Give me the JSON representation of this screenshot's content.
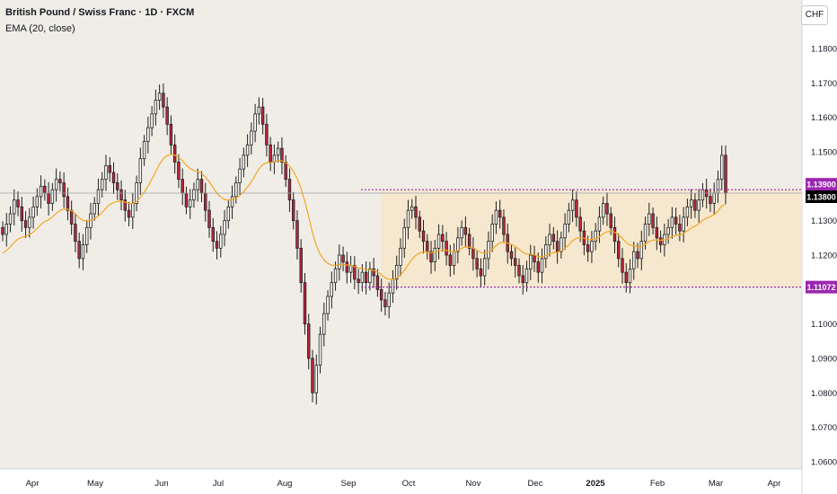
{
  "header": {
    "title": "British Pound / Swiss Franc · 1D · FXCM",
    "indicator": "EMA (20, close)",
    "currency": "CHF"
  },
  "colors": {
    "up": "#ffffff",
    "down": "#c0263e",
    "wick": "#1e1e1e",
    "ema": "#f5a623",
    "range_fill": "#f6e8cf",
    "level_line": "#9c27b0",
    "last_price_bg": "#000000",
    "background": "#f0ede6"
  },
  "chart_data": {
    "type": "candlestick",
    "symbol": "GBPCHF",
    "timeframe": "1D",
    "price_axis": {
      "min": 1.06,
      "max": 1.18,
      "ticks": [
        "1.18000",
        "1.17000",
        "1.16000",
        "1.15000",
        "1.14000",
        "1.13000",
        "1.12000",
        "1.11000",
        "1.10000",
        "1.09000",
        "1.08000",
        "1.07000",
        "1.06000"
      ]
    },
    "time_axis": [
      "Apr",
      "May",
      "Jun",
      "Jul",
      "Aug",
      "Sep",
      "Oct",
      "Nov",
      "Dec",
      "2025",
      "Feb",
      "Mar",
      "Apr"
    ],
    "range_box": {
      "top": 1.139,
      "bottom": 1.1107,
      "start": "Sep",
      "end": "Mar"
    },
    "levels": [
      {
        "price": 1.139,
        "label": "1.13900"
      },
      {
        "price": 1.1107,
        "label": "1.11072"
      }
    ],
    "last_price": {
      "price": 1.138,
      "label": "1.13800"
    },
    "ema_period": 20,
    "closes": [
      1.126,
      1.129,
      1.132,
      1.136,
      1.134,
      1.13,
      1.128,
      1.131,
      1.134,
      1.137,
      1.14,
      1.138,
      1.135,
      1.139,
      1.142,
      1.141,
      1.137,
      1.133,
      1.129,
      1.124,
      1.119,
      1.123,
      1.128,
      1.132,
      1.135,
      1.139,
      1.142,
      1.146,
      1.144,
      1.141,
      1.139,
      1.136,
      1.133,
      1.131,
      1.135,
      1.141,
      1.148,
      1.153,
      1.157,
      1.161,
      1.165,
      1.167,
      1.163,
      1.158,
      1.152,
      1.147,
      1.142,
      1.138,
      1.134,
      1.136,
      1.139,
      1.142,
      1.138,
      1.133,
      1.128,
      1.124,
      1.122,
      1.126,
      1.13,
      1.134,
      1.137,
      1.141,
      1.145,
      1.149,
      1.152,
      1.156,
      1.161,
      1.163,
      1.158,
      1.152,
      1.147,
      1.149,
      1.151,
      1.147,
      1.142,
      1.136,
      1.13,
      1.122,
      1.112,
      1.1,
      1.09,
      1.08,
      1.088,
      1.097,
      1.103,
      1.108,
      1.112,
      1.116,
      1.12,
      1.118,
      1.115,
      1.117,
      1.113,
      1.112,
      1.115,
      1.112,
      1.116,
      1.114,
      1.11,
      1.107,
      1.105,
      1.109,
      1.113,
      1.117,
      1.122,
      1.128,
      1.133,
      1.134,
      1.131,
      1.127,
      1.124,
      1.121,
      1.118,
      1.122,
      1.126,
      1.124,
      1.12,
      1.117,
      1.121,
      1.125,
      1.128,
      1.126,
      1.122,
      1.119,
      1.116,
      1.114,
      1.119,
      1.124,
      1.129,
      1.133,
      1.131,
      1.126,
      1.121,
      1.119,
      1.117,
      1.114,
      1.112,
      1.116,
      1.12,
      1.118,
      1.115,
      1.119,
      1.123,
      1.126,
      1.124,
      1.121,
      1.125,
      1.129,
      1.133,
      1.136,
      1.131,
      1.127,
      1.123,
      1.121,
      1.124,
      1.127,
      1.131,
      1.135,
      1.132,
      1.128,
      1.124,
      1.119,
      1.115,
      1.112,
      1.116,
      1.121,
      1.119,
      1.124,
      1.129,
      1.132,
      1.128,
      1.125,
      1.123,
      1.126,
      1.128,
      1.131,
      1.129,
      1.127,
      1.131,
      1.134,
      1.136,
      1.133,
      1.136,
      1.139,
      1.137,
      1.135,
      1.138,
      1.142,
      1.149,
      1.138
    ]
  }
}
